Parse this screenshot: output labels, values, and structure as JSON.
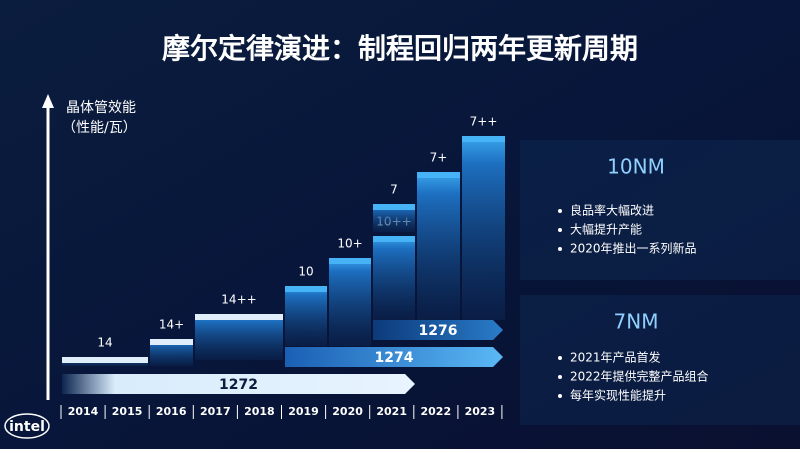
{
  "title": "摩尔定律演进：制程回归两年更新周期",
  "y_axis": {
    "label": "晶体管效能",
    "sublabel": "（性能/瓦）"
  },
  "steps": [
    {
      "label": "14"
    },
    {
      "label": "14+"
    },
    {
      "label": "14++"
    },
    {
      "label": "10"
    },
    {
      "label": "10+"
    },
    {
      "label": "10++"
    },
    {
      "label": "7"
    },
    {
      "label": "7+"
    },
    {
      "label": "7++"
    }
  ],
  "arrows": [
    {
      "label": "1272"
    },
    {
      "label": "1274"
    },
    {
      "label": "1276"
    }
  ],
  "years": [
    "2014",
    "2015",
    "2016",
    "2017",
    "2018",
    "2019",
    "2020",
    "2021",
    "2022",
    "2023"
  ],
  "sections": [
    {
      "heading": "10NM",
      "bullets": [
        "良品率大幅改进",
        "大幅提升产能",
        "2020年推出一系列新品"
      ]
    },
    {
      "heading": "7NM",
      "bullets": [
        "2021年产品首发",
        "2022年提供完整产品组合",
        "每年实现性能提升"
      ]
    }
  ],
  "logo": "intel"
}
